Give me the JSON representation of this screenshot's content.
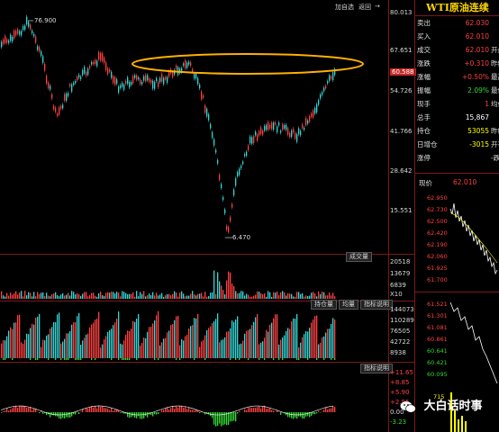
{
  "toolbar": {
    "add_self": "加自选",
    "return": "返回",
    "arrow": "→"
  },
  "main": {
    "y_ticks": [
      "80.013",
      "67.651",
      "54.726",
      "41.766",
      "28.642",
      "15.551"
    ],
    "price_badge": "60.588",
    "high_label": "76.900",
    "low_label": "6.470"
  },
  "volume": {
    "tab": "成交量",
    "ticks": [
      "20518",
      "13679",
      "6839"
    ],
    "unit": "X10"
  },
  "open_interest": {
    "tab1": "持仓量",
    "tab2": "均量",
    "tab3": "指标说明",
    "ticks": [
      "144073",
      "110289",
      "76505",
      "42722",
      "8938"
    ]
  },
  "indicator": {
    "tab": "指标说明",
    "ticks": [
      "+11.65",
      "+8.85",
      "+5.90",
      "+2.95",
      "0.00",
      "-3.23"
    ]
  },
  "side": {
    "title": "WTI原油连续",
    "rows": [
      {
        "label": "卖出",
        "value": "62.030",
        "color": "red",
        "extra": ""
      },
      {
        "label": "买入",
        "value": "62.010",
        "color": "red",
        "extra": ""
      },
      {
        "label": "成交",
        "value": "62.010",
        "color": "red",
        "extra": "开盘"
      },
      {
        "label": "涨跌",
        "value": "+0.310",
        "color": "red",
        "extra": "昨结"
      },
      {
        "label": "涨幅",
        "value": "+0.50%",
        "color": "red",
        "extra": "最高"
      },
      {
        "label": "振幅",
        "value": "2.09%",
        "color": "green",
        "extra": "最低"
      },
      {
        "label": "现手",
        "value": "1",
        "color": "red",
        "extra": "均价"
      },
      {
        "label": "总手",
        "value": "15,867",
        "color": "white",
        "extra": ""
      },
      {
        "label": "持仓",
        "value": "53055",
        "color": "yellow",
        "extra": "昨结"
      },
      {
        "label": "日增仓",
        "value": "-3015",
        "color": "yellow",
        "extra": "开平"
      },
      {
        "label": "涨停",
        "value": "",
        "color": "white",
        "extra": "-跌停"
      }
    ],
    "now_label": "现价",
    "now_value": "62.010",
    "mini_ticks": [
      "62.950",
      "62.730",
      "62.500",
      "62.420",
      "62.190",
      "62.060",
      "61.925",
      "61.700"
    ],
    "mini_ticks2": [
      "61.521",
      "61.301",
      "61.081",
      "60.861",
      "60.641",
      "60.421",
      "60.095",
      "59.821"
    ],
    "vol_tick": "715"
  },
  "watermark": {
    "text": "大白话时事"
  },
  "colors": {
    "up": "#ff4040",
    "down": "#35d7d7",
    "ellipse": "#ffb000",
    "grid": "#7a1a1a"
  }
}
